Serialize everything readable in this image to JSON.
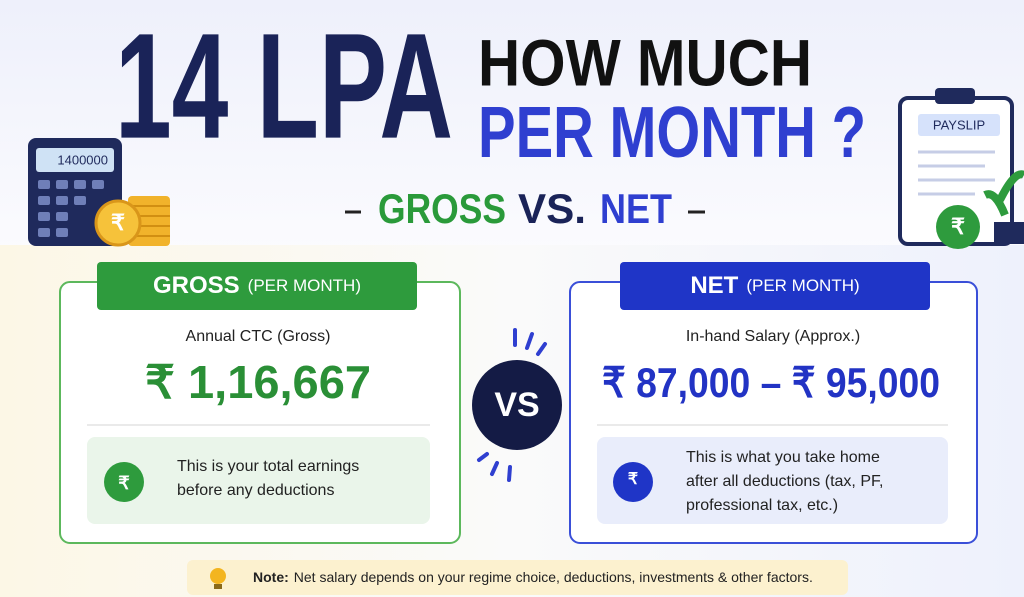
{
  "header": {
    "big": "14 LPA",
    "line1": "HOW MUCH",
    "line2": "PER MONTH ?",
    "compare": {
      "gross": "GROSS",
      "vs": "VS.",
      "net": "NET"
    }
  },
  "calculator": {
    "display": "1400000"
  },
  "payslip": {
    "label": "PAYSLIP"
  },
  "icons": {
    "coin": "₹",
    "payslip": "₹",
    "gross": "₹",
    "net": "₹"
  },
  "gross_card": {
    "title": "GROSS",
    "subtitle": "(PER MONTH)",
    "label": "Annual CTC (Gross)",
    "value": "₹ 1,16,667",
    "description": [
      "This is your total earnings",
      "before any deductions"
    ]
  },
  "vs": "VS",
  "net_card": {
    "title": "NET",
    "subtitle": "(PER MONTH)",
    "label": "In-hand Salary (Approx.)",
    "value": "₹ 87,000 – ₹ 95,000",
    "description": [
      "This is what you take home",
      "after all deductions (tax, PF,",
      "professional tax, etc.)"
    ]
  },
  "note": {
    "label": "Note:",
    "text": "Net salary depends on your regime choice, deductions, investments & other factors."
  }
}
